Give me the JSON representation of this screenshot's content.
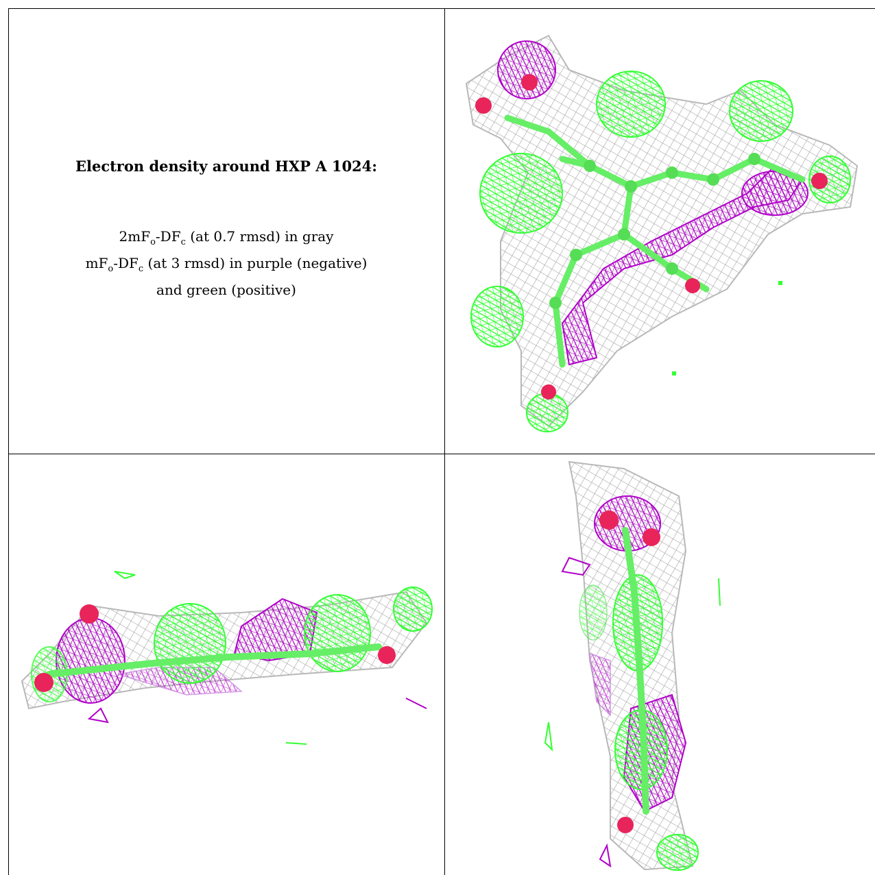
{
  "caption": {
    "title": "Electron density around HXP A 1024:",
    "line1": {
      "pre": "2mF",
      "sub1": "o",
      "mid": "-DF",
      "sub2": "c",
      "post": " (at 0.7 rmsd) in gray"
    },
    "line2": {
      "pre": "mF",
      "sub1": "o",
      "mid": "-DF",
      "sub2": "c",
      "post": " (at 3 rmsd) in purple (negative)"
    },
    "line3": "and green (positive)"
  },
  "colors": {
    "map_2fofc": "#a8a8a8",
    "map_negative": "#b000c8",
    "map_positive": "#33ff33",
    "oxygen": "#e8245a",
    "carbon_stick": "#66ee66"
  },
  "views": [
    {
      "name": "view-front",
      "description_icon": "mesh-icon"
    },
    {
      "name": "view-edge-horizontal",
      "description_icon": "mesh-icon"
    },
    {
      "name": "view-edge-vertical",
      "description_icon": "mesh-icon"
    }
  ]
}
